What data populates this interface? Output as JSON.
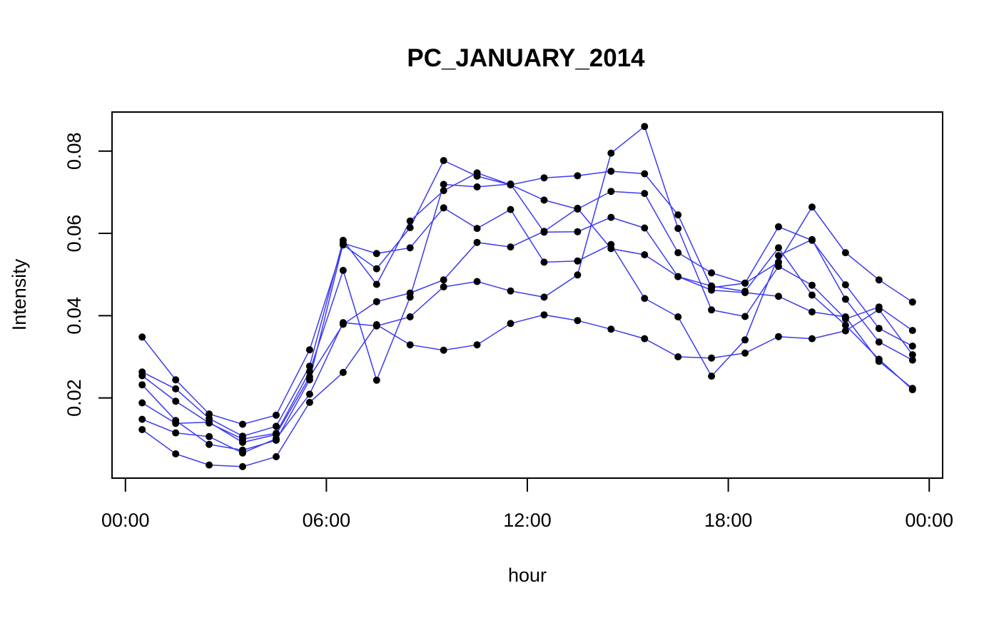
{
  "chart_data": {
    "type": "line",
    "title": "PC_JANUARY_2014",
    "xlabel": "hour",
    "ylabel": "Intensity",
    "x_tick_labels": [
      "00:00",
      "06:00",
      "12:00",
      "18:00",
      "00:00"
    ],
    "x_tick_hours": [
      0,
      6,
      12,
      18,
      24
    ],
    "y_tick_labels": [
      "0.02",
      "0.04",
      "0.06",
      "0.08"
    ],
    "y_tick_values": [
      0.02,
      0.04,
      0.06,
      0.08
    ],
    "xlim_hours": [
      -0.4,
      24.4
    ],
    "ylim": [
      0.0005,
      0.0895
    ],
    "grid": false,
    "legend": "none",
    "line_color": "#3b3bf0",
    "point_color": "#000000",
    "x_hours": [
      0.5,
      1.5,
      2.5,
      3.5,
      4.5,
      5.5,
      6.5,
      7.5,
      8.5,
      9.5,
      10.5,
      11.5,
      12.5,
      13.5,
      14.5,
      15.5,
      16.5,
      17.5,
      18.5,
      19.5,
      20.5,
      21.5,
      22.5,
      23.5
    ],
    "series": [
      {
        "values": [
          0.0348,
          0.0244,
          0.0161,
          0.0136,
          0.0158,
          0.0317,
          0.0572,
          0.0514,
          0.0614,
          0.0777,
          0.0739,
          0.0718,
          0.0681,
          0.0659,
          0.0702,
          0.0697,
          0.0553,
          0.0504,
          0.0479,
          0.0616,
          0.0583,
          0.0475,
          0.0369,
          0.0326
        ]
      },
      {
        "values": [
          0.0263,
          0.0222,
          0.015,
          0.0107,
          0.0131,
          0.0277,
          0.0583,
          0.0476,
          0.063,
          0.0704,
          0.0747,
          0.0718,
          0.0735,
          0.074,
          0.0751,
          0.0745,
          0.0645,
          0.0468,
          0.0479,
          0.053,
          0.0664,
          0.0553,
          0.0487,
          0.0433
        ]
      },
      {
        "values": [
          0.0254,
          0.0192,
          0.0139,
          0.01,
          0.0114,
          0.0264,
          0.051,
          0.0243,
          0.0445,
          0.0719,
          0.0713,
          0.072,
          0.0603,
          0.0604,
          0.0639,
          0.0613,
          0.0495,
          0.0472,
          0.0459,
          0.0565,
          0.045,
          0.0377,
          0.0294,
          0.022
        ]
      },
      {
        "values": [
          0.0232,
          0.0145,
          0.0087,
          0.0073,
          0.0097,
          0.0244,
          0.0576,
          0.0551,
          0.0565,
          0.0662,
          0.0612,
          0.0658,
          0.053,
          0.0533,
          0.0573,
          0.0442,
          0.0397,
          0.0253,
          0.0341,
          0.0546,
          0.0585,
          0.044,
          0.0336,
          0.0292
        ]
      },
      {
        "values": [
          0.0188,
          0.0138,
          0.0141,
          0.0092,
          0.0111,
          0.0251,
          0.0379,
          0.0434,
          0.0455,
          0.0487,
          0.0578,
          0.0567,
          0.0605,
          0.0661,
          0.0563,
          0.0548,
          0.0495,
          0.0462,
          0.0456,
          0.0447,
          0.0409,
          0.0397,
          0.0289,
          0.0223
        ]
      },
      {
        "values": [
          0.0148,
          0.0115,
          0.0106,
          0.0066,
          0.0101,
          0.0209,
          0.0383,
          0.0375,
          0.0397,
          0.047,
          0.0483,
          0.046,
          0.0445,
          0.0499,
          0.0795,
          0.086,
          0.0612,
          0.0414,
          0.0398,
          0.052,
          0.0474,
          0.0392,
          0.0421,
          0.0364
        ]
      },
      {
        "values": [
          0.0123,
          0.0064,
          0.0037,
          0.0033,
          0.0057,
          0.0189,
          0.0262,
          0.0378,
          0.0329,
          0.0316,
          0.0329,
          0.0381,
          0.0402,
          0.0388,
          0.0367,
          0.0344,
          0.03,
          0.0297,
          0.0309,
          0.0349,
          0.0344,
          0.0363,
          0.0415,
          0.0305
        ]
      }
    ]
  }
}
